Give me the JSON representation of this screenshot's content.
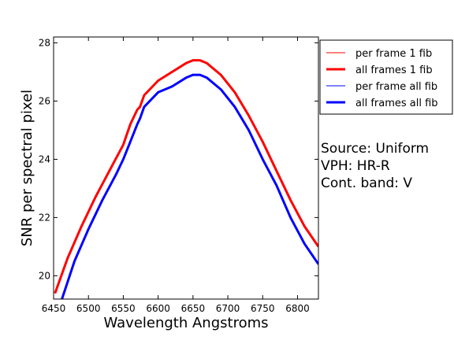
{
  "chart_data": {
    "type": "line",
    "xlabel": "Wavelength Angstroms",
    "ylabel": "SNR per spectral pixel",
    "xlim": [
      6450,
      6830
    ],
    "ylim": [
      19.2,
      28.2
    ],
    "xticks": [
      6450,
      6500,
      6550,
      6600,
      6650,
      6700,
      6750,
      6800
    ],
    "yticks": [
      20,
      22,
      24,
      26,
      28
    ],
    "grid": false,
    "legend_position": "right",
    "series": [
      {
        "name": "per frame 1 fib",
        "color": "#ff0000",
        "weight": "thin",
        "x": [
          6452,
          6470,
          6490,
          6510,
          6530,
          6550,
          6560,
          6570,
          6574,
          6580,
          6600,
          6620,
          6640,
          6650,
          6660,
          6670,
          6690,
          6710,
          6730,
          6750,
          6770,
          6790,
          6810,
          6830
        ],
        "y": [
          19.4,
          20.6,
          21.7,
          22.7,
          23.6,
          24.5,
          25.2,
          25.7,
          25.8,
          26.2,
          26.7,
          27.0,
          27.3,
          27.4,
          27.4,
          27.3,
          26.9,
          26.3,
          25.5,
          24.6,
          23.6,
          22.6,
          21.7,
          21.0
        ]
      },
      {
        "name": "all frames 1 fib",
        "color": "#ff0000",
        "weight": "thick",
        "x": [
          6452,
          6470,
          6490,
          6510,
          6530,
          6550,
          6560,
          6570,
          6574,
          6580,
          6600,
          6620,
          6640,
          6650,
          6660,
          6670,
          6690,
          6710,
          6730,
          6750,
          6770,
          6790,
          6810,
          6830
        ],
        "y": [
          19.4,
          20.6,
          21.7,
          22.7,
          23.6,
          24.5,
          25.2,
          25.7,
          25.8,
          26.2,
          26.7,
          27.0,
          27.3,
          27.4,
          27.4,
          27.3,
          26.9,
          26.3,
          25.5,
          24.6,
          23.6,
          22.6,
          21.7,
          21.0
        ]
      },
      {
        "name": "per frame all fib",
        "color": "#0000ff",
        "weight": "thin",
        "x": [
          6462,
          6480,
          6500,
          6520,
          6540,
          6550,
          6560,
          6570,
          6574,
          6580,
          6600,
          6620,
          6640,
          6650,
          6660,
          6670,
          6690,
          6710,
          6730,
          6750,
          6770,
          6790,
          6810,
          6830
        ],
        "y": [
          19.2,
          20.5,
          21.6,
          22.6,
          23.5,
          24.0,
          24.6,
          25.2,
          25.4,
          25.8,
          26.3,
          26.5,
          26.8,
          26.9,
          26.9,
          26.8,
          26.4,
          25.8,
          25.0,
          24.0,
          23.1,
          22.0,
          21.1,
          20.4
        ]
      },
      {
        "name": "all frames all fib",
        "color": "#0000ff",
        "weight": "thick",
        "x": [
          6462,
          6480,
          6500,
          6520,
          6540,
          6550,
          6560,
          6570,
          6574,
          6580,
          6600,
          6620,
          6640,
          6650,
          6660,
          6670,
          6690,
          6710,
          6730,
          6750,
          6770,
          6790,
          6810,
          6830
        ],
        "y": [
          19.2,
          20.5,
          21.6,
          22.6,
          23.5,
          24.0,
          24.6,
          25.2,
          25.4,
          25.8,
          26.3,
          26.5,
          26.8,
          26.9,
          26.9,
          26.8,
          26.4,
          25.8,
          25.0,
          24.0,
          23.1,
          22.0,
          21.1,
          20.4
        ]
      }
    ],
    "annotations": [
      "Source: Uniform",
      "VPH: HR-R",
      "Cont. band: V"
    ]
  }
}
